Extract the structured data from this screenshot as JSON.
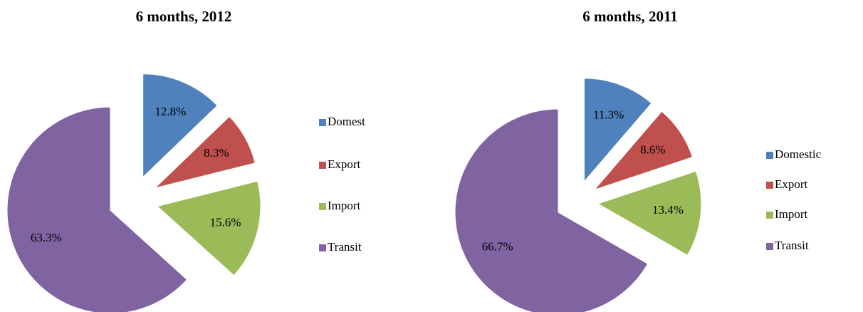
{
  "chart_data": [
    {
      "type": "pie",
      "title": "6 months, 2012",
      "categories": [
        "Domest",
        "Export",
        "Import",
        "Transit"
      ],
      "values": [
        12.8,
        8.3,
        15.6,
        63.3
      ],
      "value_labels": [
        "12.8%",
        "8.3%",
        "15.6%",
        "63.3%"
      ],
      "colors": [
        "#4f81bd",
        "#c0504d",
        "#9bbb59",
        "#8064a2"
      ]
    },
    {
      "type": "pie",
      "title": "6 months, 2011",
      "categories": [
        "Domestic",
        "Export",
        "Import",
        "Transit"
      ],
      "values": [
        11.3,
        8.6,
        13.4,
        66.7
      ],
      "value_labels": [
        "11.3%",
        "8.6%",
        "13.4%",
        "66.7%"
      ],
      "colors": [
        "#4f81bd",
        "#c0504d",
        "#9bbb59",
        "#8064a2"
      ]
    }
  ]
}
